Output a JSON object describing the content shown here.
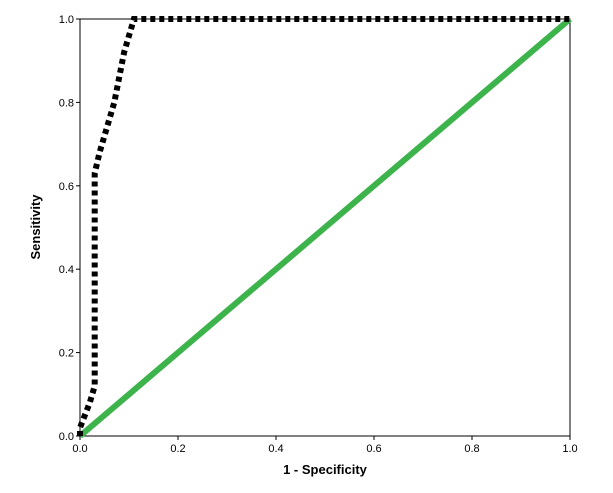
{
  "chart_data": {
    "type": "line",
    "title": "",
    "xlabel": "1 - Specificity",
    "ylabel": "Sensitivity",
    "xlim": [
      0.0,
      1.0
    ],
    "ylim": [
      0.0,
      1.0
    ],
    "x_ticks": [
      "0.0",
      "0.2",
      "0.4",
      "0.6",
      "0.8",
      "1.0"
    ],
    "y_ticks": [
      "0.0",
      "0.2",
      "0.4",
      "0.6",
      "0.8",
      "1.0"
    ],
    "grid": false,
    "legend": "none",
    "series": [
      {
        "style": "dotted",
        "color": "#000000",
        "points": [
          [
            0.0,
            0.0
          ],
          [
            0.0,
            0.02
          ],
          [
            0.02,
            0.08
          ],
          [
            0.03,
            0.12
          ],
          [
            0.03,
            0.63
          ],
          [
            0.04,
            0.68
          ],
          [
            0.07,
            0.8
          ],
          [
            0.09,
            0.92
          ],
          [
            0.11,
            1.0
          ],
          [
            1.0,
            1.0
          ]
        ]
      },
      {
        "style": "solid",
        "color": "#3cb44b",
        "points": [
          [
            0.0,
            0.0
          ],
          [
            1.0,
            1.0
          ]
        ]
      }
    ]
  }
}
